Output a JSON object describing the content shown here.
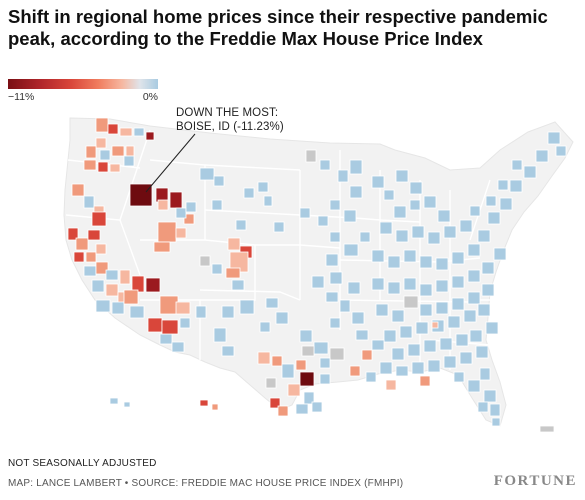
{
  "title": "Shift in regional home prices since their respective pandemic peak, according to the Freddie Max House Price Index",
  "legend": {
    "min_label": "−11%",
    "max_label": "0%",
    "colors": [
      "#7a0f14",
      "#b1262b",
      "#d9463a",
      "#f07c5e",
      "#f6b7a0",
      "#dfe4ea",
      "#a9cbe1"
    ]
  },
  "callout": {
    "line1": "DOWN THE MOST:",
    "line2": "BOISE, ID (-11.23%)"
  },
  "footer": {
    "note": "NOT SEASONALLY ADJUSTED",
    "credit": "MAP: LANCE LAMBERT • SOURCE: FREDDIE MAC HOUSE PRICE INDEX (FMHPI)",
    "brand": "FORTUNE"
  },
  "map_colors": {
    "land": "#f2f2f2",
    "border": "#ffffff",
    "blue": "#a9cbe1",
    "gray": "#c8c8c8",
    "light_salmon": "#f6b7a0",
    "salmon": "#f09a7c",
    "red": "#d9463a",
    "dark_red": "#9b1a1f",
    "darkest_red": "#6e0b10"
  }
}
